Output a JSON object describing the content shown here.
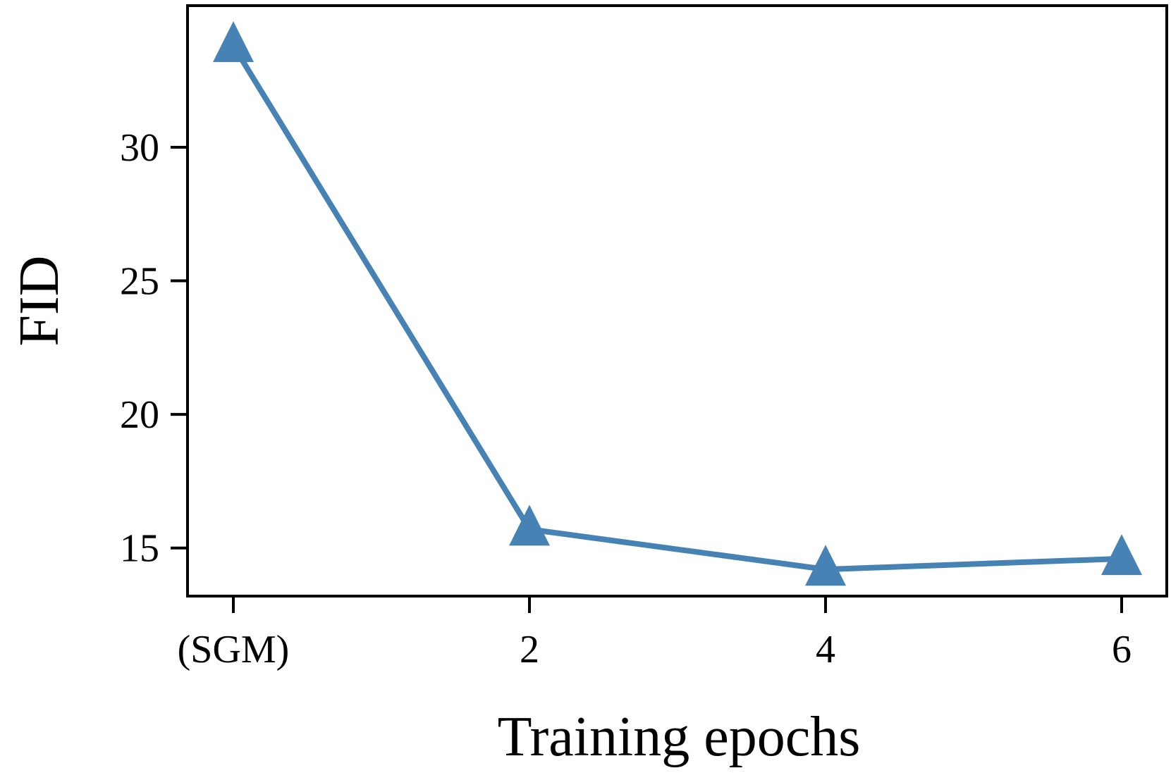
{
  "chart_data": {
    "type": "line",
    "title": "",
    "xlabel": "Training epochs",
    "ylabel": "FID",
    "categories": [
      "(SGM)",
      "2",
      "4",
      "6"
    ],
    "series": [
      {
        "values": [
          33.8,
          15.7,
          14.2,
          14.6
        ],
        "color": "#4682b4",
        "marker": "triangle"
      }
    ],
    "y_ticks": [
      15,
      20,
      25,
      30
    ],
    "ylim": [
      13.2,
      35.3
    ],
    "grid": false,
    "legend": "none"
  }
}
